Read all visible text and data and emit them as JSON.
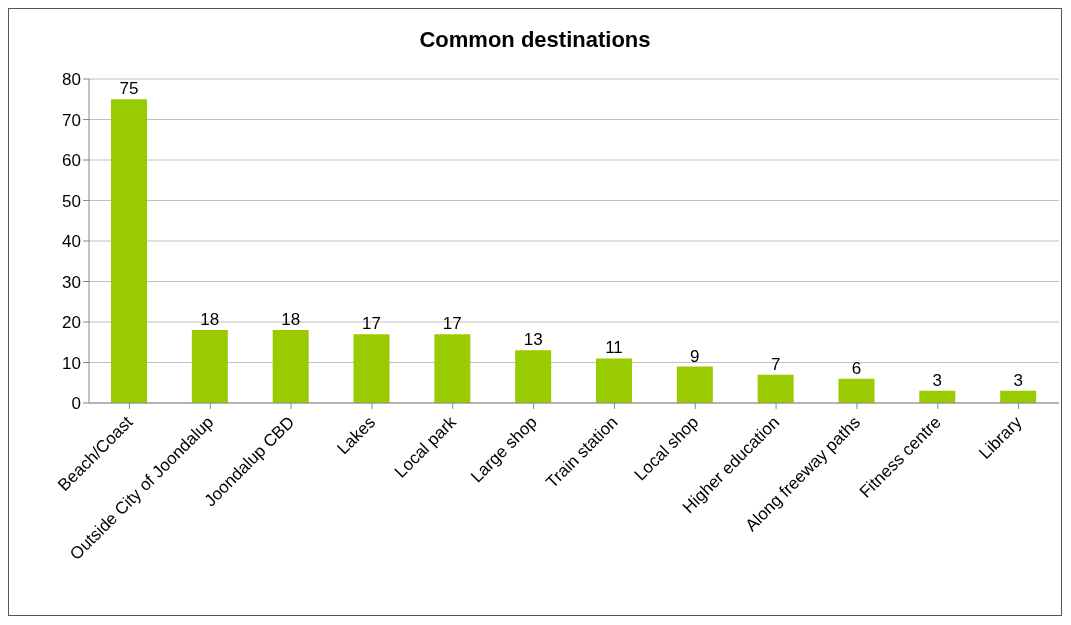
{
  "chart_data": {
    "type": "bar",
    "title": "Common destinations",
    "categories": [
      "Beach/Coast",
      "Outside City of Joondalup",
      "Joondalup CBD",
      "Lakes",
      "Local park",
      "Large shop",
      "Train station",
      "Local shop",
      "Higher education",
      "Along freeway paths",
      "Fitness centre",
      "Library"
    ],
    "values": [
      75,
      18,
      18,
      17,
      17,
      13,
      11,
      9,
      7,
      6,
      3,
      3
    ],
    "color": "#99cc00",
    "ylim": [
      0,
      80
    ],
    "yticks": [
      0,
      10,
      20,
      30,
      40,
      50,
      60,
      70,
      80
    ],
    "grid": "y",
    "data_labels": true
  }
}
